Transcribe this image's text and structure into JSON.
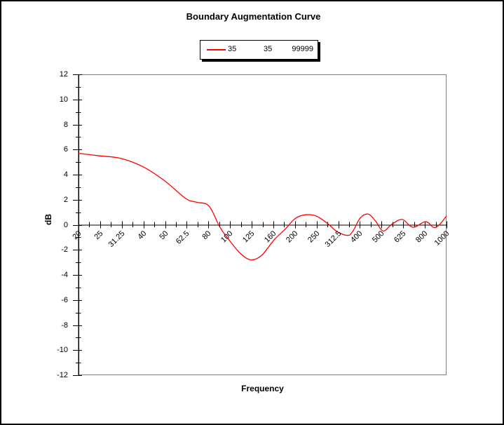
{
  "title": "Boundary Augmentation Curve",
  "legend": {
    "items": [
      "35",
      "35",
      "99999"
    ]
  },
  "colors": {
    "series": "#ff0000",
    "axis": "#000000",
    "plot_frame": "#808080",
    "background": "#ffffff",
    "text": "#000000"
  },
  "chart_data": {
    "type": "line",
    "title": "Boundary Augmentation Curve",
    "xlabel": "Frequency",
    "ylabel": "dB",
    "x_scale": "log",
    "grid": false,
    "legend_position": "top-center",
    "legend_entries": [
      "35",
      "35",
      "99999"
    ],
    "x_tick_labels": [
      "20",
      "25",
      "31.25",
      "40",
      "50",
      "62.5",
      "80",
      "100",
      "125",
      "160",
      "200",
      "250",
      "312.5",
      "400",
      "500",
      "625",
      "800",
      "1000"
    ],
    "y_tick_values": [
      12,
      10,
      8,
      6,
      4,
      2,
      0,
      -2,
      -4,
      -6,
      -8,
      -10,
      -12
    ],
    "y_minor_step": 1,
    "xlim": [
      20,
      1000
    ],
    "ylim": [
      -12,
      12
    ],
    "series": [
      {
        "name": "35 35 99999",
        "color": "#ff0000",
        "points": [
          [
            20,
            5.7
          ],
          [
            25,
            5.5
          ],
          [
            31.25,
            5.3
          ],
          [
            40,
            4.6
          ],
          [
            50,
            3.5
          ],
          [
            62.5,
            2.1
          ],
          [
            70,
            1.8
          ],
          [
            80,
            1.5
          ],
          [
            90,
            -0.2
          ],
          [
            100,
            -1.3
          ],
          [
            112,
            -2.3
          ],
          [
            125,
            -2.8
          ],
          [
            140,
            -2.45
          ],
          [
            160,
            -1.2
          ],
          [
            180,
            -0.35
          ],
          [
            200,
            0.5
          ],
          [
            224,
            0.8
          ],
          [
            250,
            0.7
          ],
          [
            280,
            0.15
          ],
          [
            312.5,
            -0.55
          ],
          [
            350,
            -0.85
          ],
          [
            370,
            -0.5
          ],
          [
            400,
            0.55
          ],
          [
            435,
            0.85
          ],
          [
            470,
            0.3
          ],
          [
            510,
            -0.5
          ],
          [
            560,
            0.05
          ],
          [
            625,
            0.42
          ],
          [
            700,
            -0.2
          ],
          [
            800,
            0.25
          ],
          [
            870,
            -0.2
          ],
          [
            920,
            -0.05
          ],
          [
            1000,
            0.7
          ]
        ]
      }
    ]
  }
}
